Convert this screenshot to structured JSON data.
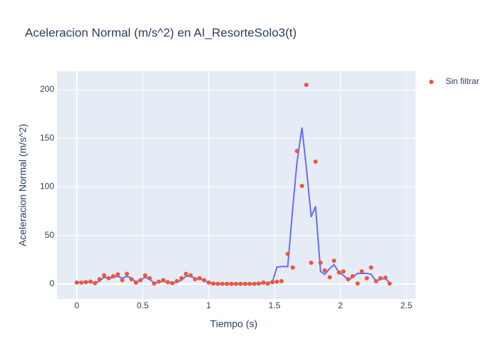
{
  "chart_data": {
    "type": "scatter",
    "title": "Aceleracion Normal (m/s^2) en AI_ResorteSolo3(t)",
    "x_label": "Tiempo (s)",
    "y_label": "Aceleracion Normal (m/s^2)",
    "x": [
      0,
      0.035,
      0.069,
      0.104,
      0.138,
      0.173,
      0.207,
      0.242,
      0.276,
      0.311,
      0.345,
      0.38,
      0.414,
      0.449,
      0.483,
      0.518,
      0.552,
      0.587,
      0.621,
      0.656,
      0.69,
      0.725,
      0.759,
      0.794,
      0.828,
      0.863,
      0.897,
      0.932,
      0.966,
      1.001,
      1.035,
      1.07,
      1.104,
      1.139,
      1.173,
      1.208,
      1.242,
      1.277,
      1.311,
      1.346,
      1.38,
      1.415,
      1.449,
      1.484,
      1.518,
      1.553,
      1.6,
      1.638,
      1.67,
      1.708,
      1.741,
      1.778,
      1.811,
      1.849,
      1.881,
      1.919,
      1.951,
      1.989,
      2.022,
      2.059,
      2.092,
      2.13,
      2.162,
      2.2,
      2.232,
      2.27,
      2.303,
      2.341,
      2.373
    ],
    "series": [
      {
        "name": "Sin filtrar",
        "mode": "markers",
        "color": "#ef553b",
        "values": [
          1.5,
          1.5,
          2,
          2.5,
          1,
          5,
          9,
          6,
          8,
          10,
          4,
          10.5,
          5,
          1.5,
          4,
          9,
          6,
          0.5,
          2.5,
          4,
          2,
          1,
          3,
          6,
          10.5,
          9,
          5,
          6,
          4,
          1.5,
          0.5,
          0.3,
          0.3,
          0.3,
          0.3,
          0.3,
          0.3,
          0.3,
          0.3,
          0.3,
          0.5,
          1.5,
          0.5,
          2,
          2.5,
          3,
          31,
          17,
          137,
          101,
          205,
          22,
          126,
          22,
          14,
          7,
          24,
          12,
          13,
          5,
          8,
          0.5,
          13,
          6,
          17,
          3,
          6,
          6.5,
          0.5
        ]
      },
      {
        "mode": "lines",
        "color": "#636efa",
        "values": [
          1.5,
          1.5,
          2,
          2,
          1.5,
          3,
          7,
          6,
          7,
          8,
          6,
          8,
          6,
          2,
          4,
          7,
          5,
          1,
          2,
          3,
          2,
          1,
          2,
          4,
          8,
          8,
          6,
          5,
          4,
          1.5,
          0.5,
          0.3,
          0.3,
          0.3,
          0.3,
          0.3,
          0.3,
          0.3,
          0.3,
          0.3,
          0.8,
          0.8,
          1.5,
          2,
          17.5,
          18,
          18,
          78,
          125,
          161,
          120,
          69,
          80,
          13,
          10,
          16,
          20,
          12,
          9,
          4,
          7,
          11,
          11,
          11,
          10,
          3,
          5,
          6,
          1
        ]
      }
    ],
    "xlim": [
      -0.15,
      2.57
    ],
    "ylim": [
      -15.4,
      219
    ],
    "xticks": [
      0,
      0.5,
      1,
      1.5,
      2,
      2.5
    ],
    "yticks": [
      0,
      50,
      100,
      150,
      200
    ],
    "grid": true,
    "legend": "right"
  }
}
